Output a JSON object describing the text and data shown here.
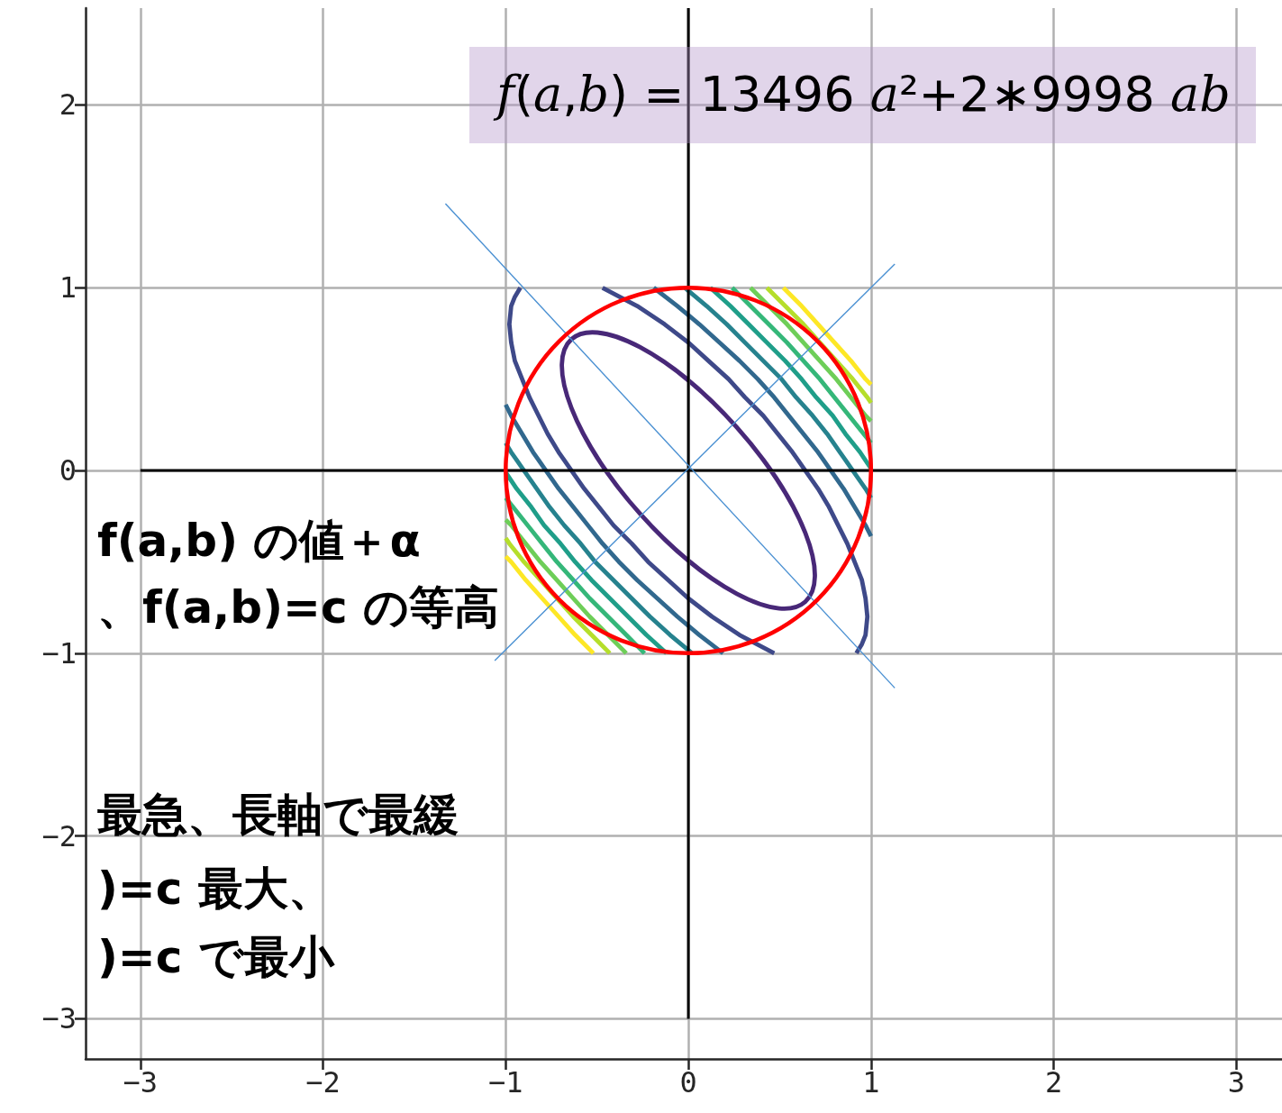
{
  "chart_data": {
    "type": "line",
    "xlim": [
      -3.3,
      3.25
    ],
    "ylim": [
      -3.22,
      2.53
    ],
    "xticks": [
      {
        "value": -3,
        "label": "−3"
      },
      {
        "value": -2,
        "label": "−2"
      },
      {
        "value": -1,
        "label": "−1"
      },
      0,
      1,
      2,
      3
    ],
    "yticks": [
      {
        "value": -3,
        "label": "−3"
      },
      {
        "value": -2,
        "label": "−2"
      },
      {
        "value": -1,
        "label": "−1"
      },
      0,
      1,
      2
    ],
    "grid": true,
    "marker": "none",
    "line_style": "solid",
    "series": [
      {
        "color": "#3e4989",
        "x": [
          -0.47,
          -0.28,
          -0.13,
          0,
          0.11,
          0.22,
          0.31,
          0.41,
          0.49,
          0.57,
          0.64,
          0.71,
          0.77,
          0.82,
          0.87,
          0.91,
          0.95,
          0.97,
          0.98,
          0.97,
          0.95,
          0.92
        ],
        "values": [
          1,
          0.9,
          0.8,
          0.7,
          0.6,
          0.5,
          0.4,
          0.3,
          0.2,
          0.1,
          0,
          -0.1,
          -0.2,
          -0.3,
          -0.4,
          -0.5,
          -0.6,
          -0.7,
          -0.8,
          -0.9,
          -0.95,
          -1
        ]
      },
      {
        "color": "#3e4989",
        "x": [
          0.47,
          0.28,
          0.13,
          0,
          -0.11,
          -0.22,
          -0.31,
          -0.41,
          -0.49,
          -0.57,
          -0.64,
          -0.71,
          -0.77,
          -0.82,
          -0.87,
          -0.91,
          -0.95,
          -0.97,
          -0.98,
          -0.97,
          -0.95,
          -0.92
        ],
        "values": [
          -1,
          -0.9,
          -0.8,
          -0.7,
          -0.6,
          -0.5,
          -0.4,
          -0.3,
          -0.2,
          -0.1,
          0,
          0.1,
          0.2,
          0.3,
          0.4,
          0.5,
          0.6,
          0.7,
          0.8,
          0.9,
          0.95,
          1
        ]
      },
      {
        "color": "#31688e",
        "x": [
          -0.19,
          -0.06,
          0.06,
          0.17,
          0.28,
          0.38,
          0.47,
          0.55,
          0.63,
          0.71,
          0.78,
          0.85,
          0.91,
          0.97,
          1
        ],
        "values": [
          1,
          0.9,
          0.8,
          0.7,
          0.6,
          0.5,
          0.4,
          0.3,
          0.2,
          0.1,
          0,
          -0.1,
          -0.2,
          -0.3,
          -0.36
        ]
      },
      {
        "color": "#31688e",
        "x": [
          0.19,
          0.06,
          -0.06,
          -0.17,
          -0.28,
          -0.38,
          -0.47,
          -0.55,
          -0.63,
          -0.71,
          -0.78,
          -0.85,
          -0.91,
          -0.97,
          -1
        ],
        "values": [
          -1,
          -0.9,
          -0.8,
          -0.7,
          -0.6,
          -0.5,
          -0.4,
          -0.3,
          -0.2,
          -0.1,
          0,
          0.1,
          0.2,
          0.3,
          0.36
        ]
      },
      {
        "color": "#26828e",
        "x": [
          -0.02,
          0.1,
          0.21,
          0.31,
          0.41,
          0.51,
          0.59,
          0.68,
          0.76,
          0.83,
          0.9,
          0.97,
          1
        ],
        "values": [
          1,
          0.9,
          0.8,
          0.7,
          0.6,
          0.5,
          0.4,
          0.3,
          0.2,
          0.1,
          0,
          -0.1,
          -0.15
        ]
      },
      {
        "color": "#26828e",
        "x": [
          0.02,
          -0.1,
          -0.21,
          -0.31,
          -0.41,
          -0.51,
          -0.59,
          -0.68,
          -0.76,
          -0.83,
          -0.9,
          -0.97,
          -1
        ],
        "values": [
          -1,
          -0.9,
          -0.8,
          -0.7,
          -0.6,
          -0.5,
          -0.4,
          -0.3,
          -0.2,
          -0.1,
          0,
          0.1,
          0.15
        ]
      },
      {
        "color": "#1f9e89",
        "x": [
          0.12,
          0.23,
          0.33,
          0.43,
          0.53,
          0.62,
          0.7,
          0.79,
          0.86,
          0.94,
          1
        ],
        "values": [
          1,
          0.9,
          0.8,
          0.7,
          0.6,
          0.5,
          0.4,
          0.3,
          0.2,
          0.1,
          0.01
        ]
      },
      {
        "color": "#1f9e89",
        "x": [
          -0.12,
          -0.23,
          -0.33,
          -0.43,
          -0.53,
          -0.62,
          -0.7,
          -0.79,
          -0.86,
          -0.94,
          -1
        ],
        "values": [
          -1,
          -0.9,
          -0.8,
          -0.7,
          -0.6,
          -0.5,
          -0.4,
          -0.3,
          -0.2,
          -0.1,
          -0.01
        ]
      },
      {
        "color": "#35b779",
        "x": [
          0.24,
          0.34,
          0.44,
          0.54,
          0.63,
          0.72,
          0.8,
          0.88,
          0.96,
          1
        ],
        "values": [
          1,
          0.9,
          0.8,
          0.7,
          0.6,
          0.5,
          0.4,
          0.3,
          0.2,
          0.15
        ]
      },
      {
        "color": "#35b779",
        "x": [
          -0.24,
          -0.34,
          -0.44,
          -0.54,
          -0.63,
          -0.72,
          -0.8,
          -0.88,
          -0.96,
          -1
        ],
        "values": [
          -1,
          -0.9,
          -0.8,
          -0.7,
          -0.6,
          -0.5,
          -0.4,
          -0.3,
          -0.2,
          -0.15
        ]
      },
      {
        "color": "#6ece58",
        "x": [
          0.34,
          0.44,
          0.54,
          0.63,
          0.72,
          0.81,
          0.89,
          0.97,
          1
        ],
        "values": [
          1,
          0.9,
          0.8,
          0.7,
          0.6,
          0.5,
          0.4,
          0.3,
          0.27
        ]
      },
      {
        "color": "#6ece58",
        "x": [
          -0.34,
          -0.44,
          -0.54,
          -0.63,
          -0.72,
          -0.81,
          -0.89,
          -0.97,
          -1
        ],
        "values": [
          -1,
          -0.9,
          -0.8,
          -0.7,
          -0.6,
          -0.5,
          -0.4,
          -0.3,
          -0.27
        ]
      },
      {
        "color": "#b5de2b",
        "x": [
          0.43,
          0.53,
          0.63,
          0.72,
          0.81,
          0.9,
          0.98,
          1
        ],
        "values": [
          1,
          0.9,
          0.8,
          0.7,
          0.6,
          0.5,
          0.4,
          0.37
        ]
      },
      {
        "color": "#b5de2b",
        "x": [
          -0.43,
          -0.53,
          -0.63,
          -0.72,
          -0.81,
          -0.9,
          -0.98,
          -1
        ],
        "values": [
          -1,
          -0.9,
          -0.8,
          -0.7,
          -0.6,
          -0.5,
          -0.4,
          -0.37
        ]
      },
      {
        "color": "#fde725",
        "x": [
          0.52,
          0.62,
          0.71,
          0.8,
          0.89,
          0.97,
          1
        ],
        "values": [
          1,
          0.9,
          0.8,
          0.7,
          0.6,
          0.5,
          0.47
        ]
      },
      {
        "color": "#fde725",
        "x": [
          -0.52,
          -0.62,
          -0.71,
          -0.8,
          -0.89,
          -0.97,
          -1
        ],
        "values": [
          -1,
          -0.9,
          -0.8,
          -0.7,
          -0.6,
          -0.5,
          -0.47
        ]
      },
      {
        "color": "#000000",
        "x": [
          -3,
          3
        ],
        "values": [
          0,
          0
        ]
      },
      {
        "color": "#000000",
        "x": [
          0,
          0
        ],
        "values": [
          -3,
          2.53
        ]
      },
      {
        "color": "#4a90d2",
        "x": [
          -1.33,
          1.13
        ],
        "values": [
          1.46,
          -1.19
        ]
      },
      {
        "color": "#4a90d2",
        "x": [
          -1.06,
          1.13
        ],
        "values": [
          -1.04,
          1.13
        ]
      }
    ],
    "annotations": [
      "f(a,b) = 13496 a²+2∗9998 ab",
      "f(a,b) の値＋α",
      "、f(a,b)=c の等高",
      "最急、長軸で最緩",
      ")=c 最大、",
      ")=c で最小"
    ]
  }
}
